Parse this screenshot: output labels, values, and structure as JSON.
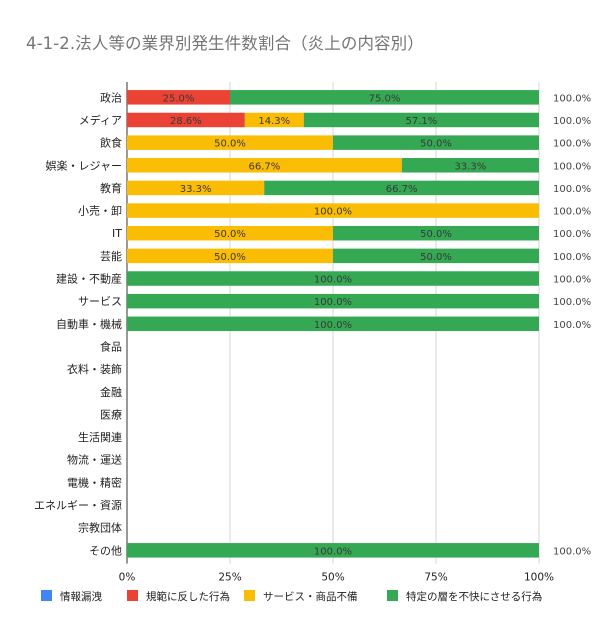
{
  "title": "4-1-2.法人等の業界別発生件数割合（炎上の内容別）",
  "chart_data": {
    "type": "bar",
    "orientation": "horizontal",
    "stacked": "percent",
    "title": "4-1-2.法人等の業界別発生件数割合（炎上の内容別）",
    "xlabel": "",
    "ylabel": "",
    "xlim": [
      0,
      100
    ],
    "x_ticks": [
      "0%",
      "25%",
      "50%",
      "75%",
      "100%"
    ],
    "grid": true,
    "legend_position": "bottom",
    "categories": [
      "政治",
      "メディア",
      "飲食",
      "娯楽・レジャー",
      "教育",
      "小売・卸",
      "IT",
      "芸能",
      "建設・不動産",
      "サービス",
      "自動車・機械",
      "食品",
      "衣料・装飾",
      "金融",
      "医療",
      "生活関連",
      "物流・運送",
      "電機・精密",
      "エネルギー・資源",
      "宗教団体",
      "その他"
    ],
    "series": [
      {
        "name": "情報漏洩",
        "color": "#4285f4",
        "values": [
          0,
          0,
          0,
          0,
          0,
          0,
          0,
          0,
          0,
          0,
          0,
          0,
          0,
          0,
          0,
          0,
          0,
          0,
          0,
          0,
          0
        ],
        "labels": [
          "",
          "",
          "",
          "",
          "",
          "",
          "",
          "",
          "",
          "",
          "",
          "",
          "",
          "",
          "",
          "",
          "",
          "",
          "",
          "",
          ""
        ]
      },
      {
        "name": "規範に反した行為",
        "color": "#ea4335",
        "values": [
          25.0,
          28.6,
          0,
          0,
          0,
          0,
          0,
          0,
          0,
          0,
          0,
          0,
          0,
          0,
          0,
          0,
          0,
          0,
          0,
          0,
          0
        ],
        "labels": [
          "25.0%",
          "28.6%",
          "",
          "",
          "",
          "",
          "",
          "",
          "",
          "",
          "",
          "",
          "",
          "",
          "",
          "",
          "",
          "",
          "",
          "",
          ""
        ]
      },
      {
        "name": "サービス・商品不備",
        "color": "#fbbc04",
        "values": [
          0,
          14.3,
          50.0,
          66.7,
          33.3,
          100.0,
          50.0,
          50.0,
          0,
          0,
          0,
          0,
          0,
          0,
          0,
          0,
          0,
          0,
          0,
          0,
          0
        ],
        "labels": [
          "",
          "14.3%",
          "50.0%",
          "66.7%",
          "33.3%",
          "100.0%",
          "50.0%",
          "50.0%",
          "",
          "",
          "",
          "",
          "",
          "",
          "",
          "",
          "",
          "",
          "",
          "",
          ""
        ]
      },
      {
        "name": "特定の層を不快にさせる行為",
        "color": "#34a853",
        "values": [
          75.0,
          57.1,
          50.0,
          33.3,
          66.7,
          0,
          50.0,
          50.0,
          100.0,
          100.0,
          100.0,
          0,
          0,
          0,
          0,
          0,
          0,
          0,
          0,
          0,
          100.0
        ],
        "labels": [
          "75.0%",
          "57.1%",
          "50.0%",
          "33.3%",
          "66.7%",
          "",
          "50.0%",
          "50.0%",
          "100.0%",
          "100.0%",
          "100.0%",
          "",
          "",
          "",
          "",
          "",
          "",
          "",
          "",
          "",
          "100.0%"
        ]
      }
    ],
    "totals": [
      "100.0%",
      "100.0%",
      "100.0%",
      "100.0%",
      "100.0%",
      "100.0%",
      "100.0%",
      "100.0%",
      "100.0%",
      "100.0%",
      "100.0%",
      "",
      "",
      "",
      "",
      "",
      "",
      "",
      "",
      "",
      "100.0%"
    ]
  }
}
